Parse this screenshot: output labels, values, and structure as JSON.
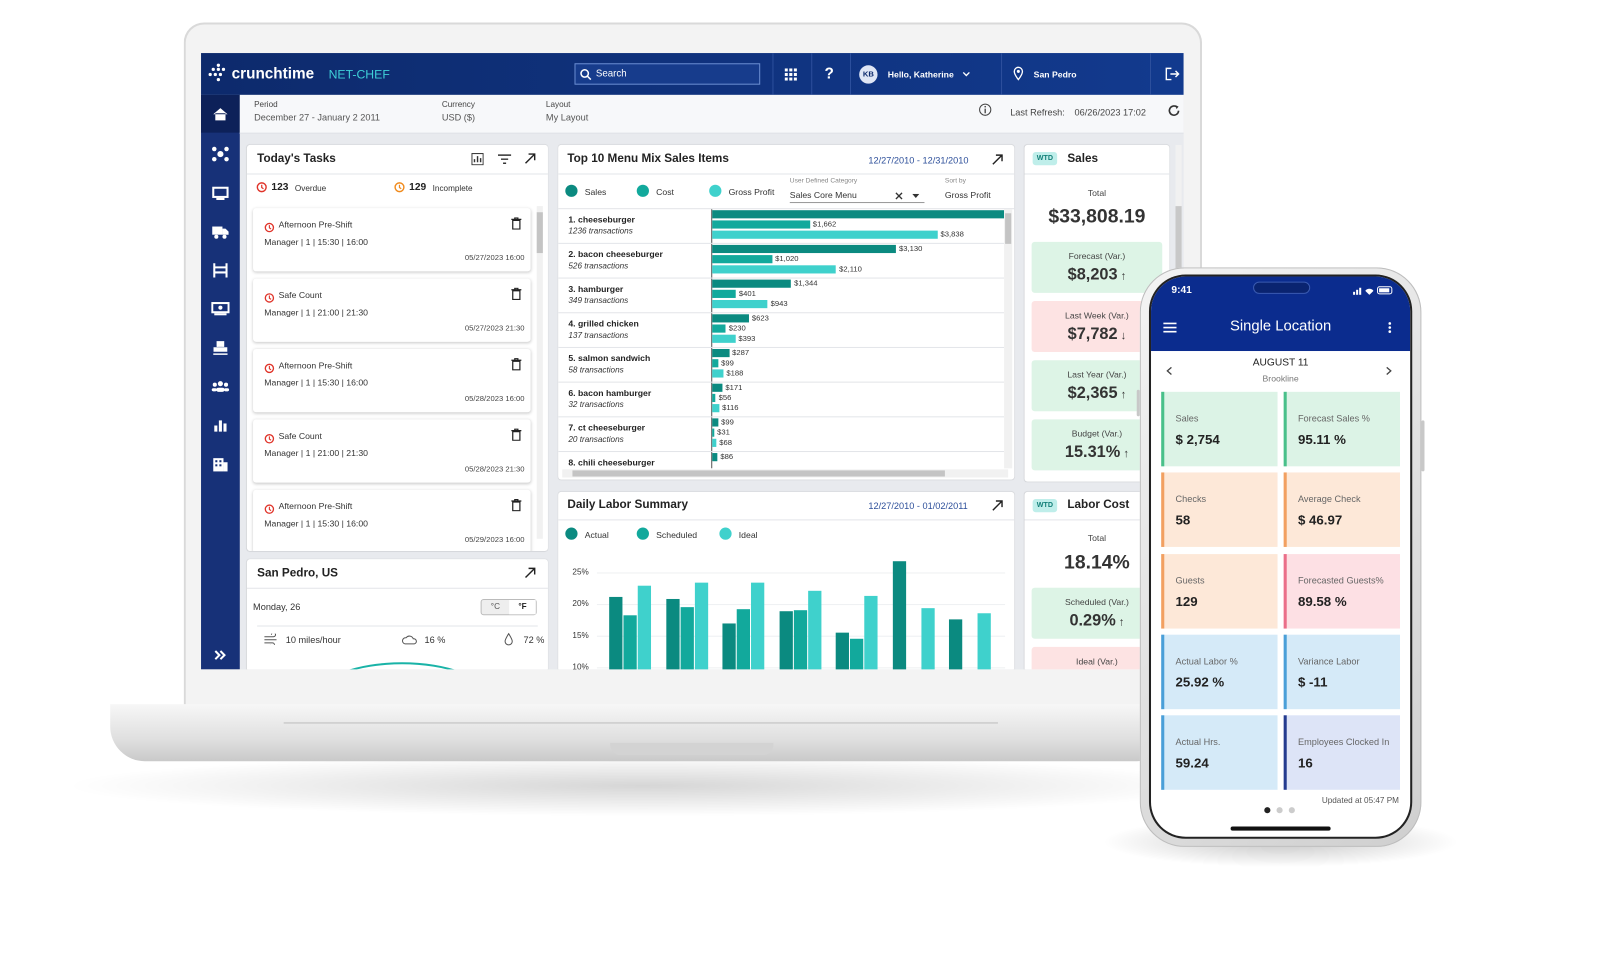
{
  "header": {
    "brand": "crunchtime",
    "product": "NET-CHEF",
    "search": "Search",
    "help": "?",
    "avatar": "KB",
    "greeting": "Hello, Katherine",
    "location": "San Pedro"
  },
  "filters": {
    "period_label": "Period",
    "period": "December 27 - January 2 2011",
    "currency_label": "Currency",
    "currency": "USD ($)",
    "layout_label": "Layout",
    "layout": "My Layout",
    "refresh_label": "Last Refresh:",
    "refresh": "06/26/2023 17:02"
  },
  "tasks": {
    "title": "Today's Tasks",
    "overdue_count": "123",
    "overdue": "Overdue",
    "incomplete_count": "129",
    "incomplete": "Incomplete",
    "items": [
      {
        "name": "Afternoon Pre-Shift",
        "detail": "Manager | 1 | 15:30 | 16:00",
        "due": "05/27/2023 16:00"
      },
      {
        "name": "Safe Count",
        "detail": "Manager | 1 | 21:00 | 21:30",
        "due": "05/27/2023 21:30"
      },
      {
        "name": "Afternoon Pre-Shift",
        "detail": "Manager | 1 | 15:30 | 16:00",
        "due": "05/28/2023 16:00"
      },
      {
        "name": "Safe Count",
        "detail": "Manager | 1 | 21:00 | 21:30",
        "due": "05/28/2023 21:30"
      },
      {
        "name": "Afternoon Pre-Shift",
        "detail": "Manager | 1 | 15:30 | 16:00",
        "due": "05/29/2023 16:00"
      }
    ]
  },
  "weather": {
    "title": "San Pedro, US",
    "day": "Monday, 26",
    "celsius": "°C",
    "fahrenheit": "°F",
    "wind": "10 miles/hour",
    "cloud": "16 %",
    "humidity": "72 %"
  },
  "menu_mix": {
    "type": "bar",
    "title": "Top 10 Menu Mix Sales Items",
    "range": "12/27/2010 - 12/31/2010",
    "category_label": "User Defined Category",
    "category": "Sales Core Menu",
    "sort_label": "Sort by",
    "sort": "Gross Profit",
    "categories": [
      "1. cheeseburger",
      "2. bacon cheeseburger",
      "3. hamburger",
      "4. grilled chicken",
      "5. salmon sandwich",
      "6. bacon hamburger",
      "7. ct cheeseburger",
      "8. chili cheeseburger"
    ],
    "transactions": [
      "1236 transactions",
      "526 transactions",
      "349 transactions",
      "137 transactions",
      "58 transactions",
      "32 transactions",
      "20 transactions",
      null
    ],
    "series": [
      {
        "name": "Sales",
        "color": "#0b8a80",
        "values": [
          5500,
          3130,
          1344,
          623,
          287,
          171,
          99,
          86
        ],
        "value_labels": [
          null,
          "$3,130",
          "$1,344",
          "$623",
          "$287",
          "$171",
          "$99",
          "$86"
        ]
      },
      {
        "name": "Cost",
        "color": "#12a99c",
        "values": [
          1662,
          1020,
          401,
          230,
          99,
          56,
          31,
          null
        ],
        "value_labels": [
          "$1,662",
          "$1,020",
          "$401",
          "$230",
          "$99",
          "$56",
          "$31",
          null
        ]
      },
      {
        "name": "Gross Profit",
        "color": "#3fd1cc",
        "values": [
          3838,
          2110,
          943,
          393,
          188,
          116,
          68,
          null
        ],
        "value_labels": [
          "$3,838",
          "$2,110",
          "$943",
          "$393",
          "$188",
          "$116",
          "$68",
          null
        ]
      }
    ]
  },
  "labor": {
    "type": "bar",
    "title": "Daily Labor Summary",
    "range": "12/27/2010 - 01/02/2011",
    "ylim": [
      10,
      27.5
    ],
    "yticks": [
      {
        "value": 25,
        "label": "25%"
      },
      {
        "value": 20,
        "label": "20%"
      },
      {
        "value": 15,
        "label": "15%"
      },
      {
        "value": 10,
        "label": "10%"
      }
    ],
    "series": [
      {
        "name": "Actual",
        "color": "#0b8a80",
        "values": [
          21.1,
          20.8,
          16.9,
          18.9,
          15.5,
          26.8,
          17.6
        ]
      },
      {
        "name": "Scheduled",
        "color": "#12a99c",
        "values": [
          18.2,
          19.5,
          19.2,
          19.0,
          14.5,
          null,
          null
        ]
      },
      {
        "name": "Ideal",
        "color": "#3fd1cc",
        "values": [
          22.9,
          23.4,
          23.4,
          22.1,
          21.3,
          19.4,
          18.5
        ]
      }
    ]
  },
  "sales_wtd": {
    "badge": "WTD",
    "title": "Sales",
    "total_label": "Total",
    "total": "$33,808.19",
    "metrics": [
      {
        "label": "Forecast (Var.)",
        "value": "$8,203",
        "trend": "↑",
        "tone": "good"
      },
      {
        "label": "Last Week (Var.)",
        "value": "$7,782",
        "trend": "↓",
        "tone": "bad"
      },
      {
        "label": "Last Year (Var.)",
        "value": "$2,365",
        "trend": "↑",
        "tone": "good"
      },
      {
        "label": "Budget (Var.)",
        "value": "15.31%",
        "trend": "↑",
        "tone": "good"
      }
    ]
  },
  "labor_wtd": {
    "badge": "WTD",
    "title": "Labor Cost",
    "total_label": "Total",
    "total": "18.14%",
    "metrics": [
      {
        "label": "Scheduled (Var.)",
        "value": "0.29%",
        "trend": "↑",
        "tone": "good"
      },
      {
        "label": "Ideal (Var.)",
        "value": null,
        "trend": null,
        "tone": "bad"
      }
    ]
  },
  "phone": {
    "time": "9:41",
    "title": "Single Location",
    "date": "AUGUST 11",
    "location": "Brookline",
    "tiles": [
      {
        "label": "Sales",
        "value": "$ 2,754",
        "tone": "green"
      },
      {
        "label": "Forecast Sales %",
        "value": "95.11 %",
        "tone": "green"
      },
      {
        "label": "Checks",
        "value": "58",
        "tone": "orange"
      },
      {
        "label": "Average Check",
        "value": "$ 46.97",
        "tone": "orange"
      },
      {
        "label": "Guests",
        "value": "129",
        "tone": "orange"
      },
      {
        "label": "Forecasted Guests%",
        "value": "89.58 %",
        "tone": "pink"
      },
      {
        "label": "Actual Labor %",
        "value": "25.92 %",
        "tone": "blue"
      },
      {
        "label": "Variance Labor",
        "value": "$ -11",
        "tone": "blue"
      },
      {
        "label": "Actual Hrs.",
        "value": "59.24",
        "tone": "blue"
      },
      {
        "label": "Employees Clocked In",
        "value": "16",
        "tone": "lavender"
      }
    ],
    "updated": "Updated at 05:47 PM"
  }
}
